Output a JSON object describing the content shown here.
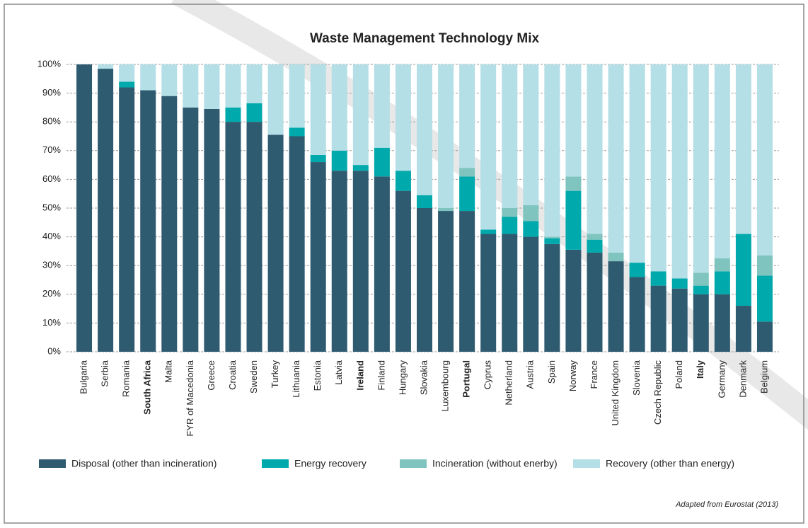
{
  "chart_data": {
    "type": "stacked_bar",
    "title": "Waste Management Technology Mix",
    "categories": [
      "Bulgaria",
      "Serbia",
      "Romania",
      "South Africa",
      "Malta",
      "FYR of Macedonia",
      "Greece",
      "Croatia",
      "Sweden",
      "Turkey",
      "Lithuania",
      "Estonia",
      "Latvia",
      "Ireland",
      "Finland",
      "Hungary",
      "Slovakia",
      "Luxembourg",
      "Portugal",
      "Cyprus",
      "Netherland",
      "Austria",
      "Spain",
      "Norway",
      "France",
      "United Kingdom",
      "Slovenia",
      "Czech Republic",
      "Poland",
      "Italy",
      "Germany",
      "Denmark",
      "Belgium"
    ],
    "bold_categories": [
      3,
      13,
      18,
      29
    ],
    "series": [
      {
        "name": "Disposal (other than incineration)",
        "color": "#2e5b70",
        "values": [
          100,
          98.5,
          92,
          91,
          89,
          85,
          84.5,
          80,
          80,
          75.5,
          75,
          66,
          63,
          63,
          61,
          56,
          50,
          49,
          49,
          41,
          41,
          40,
          37.5,
          35.5,
          34.5,
          31.5,
          26,
          23,
          22,
          20,
          20,
          16,
          10.5
        ]
      },
      {
        "name": "Energy recovery",
        "color": "#00a9ac",
        "values": [
          0,
          0,
          2,
          0,
          0,
          0,
          0,
          5,
          6.5,
          0,
          3,
          2.5,
          7,
          2,
          10,
          7,
          4.5,
          0,
          12,
          1.5,
          6,
          5.5,
          2,
          20.5,
          4.5,
          0,
          5,
          5,
          3.5,
          3,
          8,
          25,
          16
        ]
      },
      {
        "name": "Incineration (without enerby)",
        "color": "#7fc4bf",
        "values": [
          0,
          0,
          0,
          0,
          0,
          0,
          0,
          0,
          0,
          0,
          0,
          0,
          0,
          0,
          0,
          0,
          0,
          1,
          3,
          0,
          3,
          5.5,
          0.5,
          5,
          2,
          3,
          0,
          0,
          0,
          4.5,
          4.5,
          0,
          7
        ]
      },
      {
        "name": "Recovery (other than energy)",
        "color": "#b4dfe6",
        "values": [
          0,
          1.5,
          6,
          9,
          11,
          15,
          15.5,
          15,
          13.5,
          24.5,
          22,
          31.5,
          30,
          35,
          29,
          37,
          45.5,
          50,
          36,
          57.5,
          50,
          49,
          60,
          39,
          59,
          65.5,
          69,
          72,
          74.5,
          72.5,
          67.5,
          59,
          66.5
        ]
      }
    ],
    "ylim": [
      0,
      100
    ],
    "yticks": [
      {
        "value": 0,
        "label": "0%"
      },
      {
        "value": 10,
        "label": "10%"
      },
      {
        "value": 20,
        "label": "20%"
      },
      {
        "value": 30,
        "label": "30%"
      },
      {
        "value": 40,
        "label": "40%"
      },
      {
        "value": 50,
        "label": "50%"
      },
      {
        "value": 60,
        "label": "60%"
      },
      {
        "value": 70,
        "label": "70%"
      },
      {
        "value": 80,
        "label": "80%"
      },
      {
        "value": 90,
        "label": "90%"
      },
      {
        "value": 100,
        "label": "100%"
      }
    ],
    "grid": true,
    "source": "Adapted from Eurostat (2013)"
  }
}
